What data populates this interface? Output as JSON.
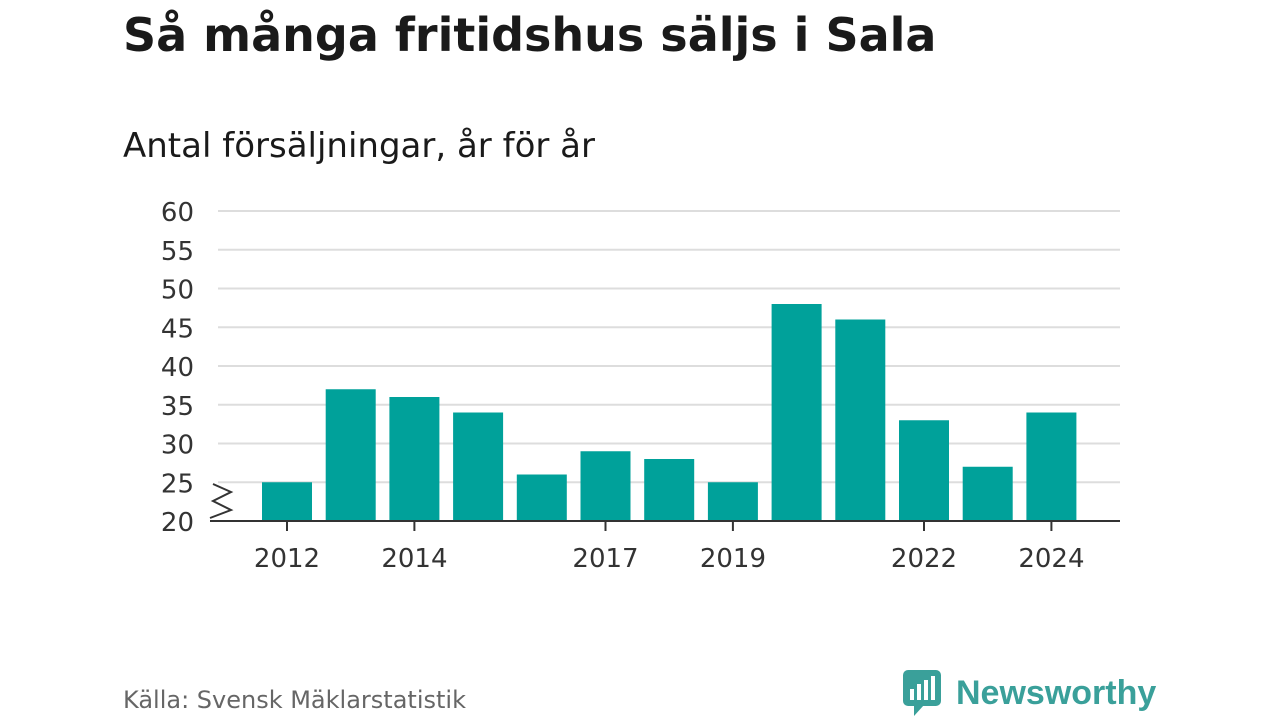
{
  "title": "Så många fritidshus säljs i Sala",
  "subtitle": "Antal försäljningar, år för år",
  "source": "Källa: Svensk Mäklarstatistik",
  "brand": {
    "name": "Newsworthy",
    "color": "#3aa09a"
  },
  "colors": {
    "bar": "#00a19a",
    "grid": "#dddddd",
    "axis": "#333333",
    "text": "#333333"
  },
  "chart_data": {
    "type": "bar",
    "title": "Så många fritidshus säljs i Sala",
    "subtitle": "Antal försäljningar, år för år",
    "categories": [
      "2012",
      "2013",
      "2014",
      "2015",
      "2016",
      "2017",
      "2018",
      "2019",
      "2020",
      "2021",
      "2022",
      "2023",
      "2024"
    ],
    "values": [
      25,
      37,
      36,
      34,
      26,
      29,
      28,
      25,
      48,
      46,
      33,
      27,
      34
    ],
    "x_tick_labels": [
      "2012",
      "2014",
      "2017",
      "2019",
      "2022",
      "2024"
    ],
    "y_ticks": [
      20,
      25,
      30,
      35,
      40,
      45,
      50,
      55,
      60
    ],
    "ylim": [
      20,
      60
    ],
    "y_axis_break": true,
    "grid": true,
    "xlabel": "",
    "ylabel": ""
  }
}
